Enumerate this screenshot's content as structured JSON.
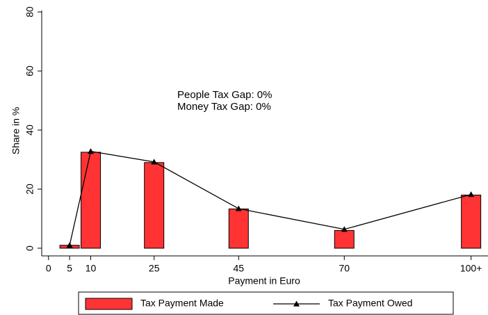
{
  "chart_data": {
    "type": "bar",
    "x": [
      5,
      10,
      25,
      45,
      70,
      100
    ],
    "series": [
      {
        "name": "Tax Payment Made",
        "type": "bar",
        "color": "#ff3333",
        "values": [
          1,
          32.5,
          29,
          13.3,
          6,
          18
        ]
      },
      {
        "name": "Tax Payment Owed",
        "type": "line",
        "color": "#000000",
        "values": [
          1,
          32.8,
          29.2,
          13.4,
          6.4,
          18.2
        ]
      }
    ],
    "xlim": [
      -1.6,
      104.5
    ],
    "xticks": [
      0,
      5,
      10,
      25,
      45,
      70,
      {
        "value": 100,
        "label": "100+"
      }
    ],
    "ylim": [
      -2.6,
      80.5
    ],
    "yticks": [
      0,
      20,
      40,
      60,
      80
    ],
    "xlabel": "Payment in Euro",
    "ylabel": "Share in %",
    "annotations": [
      "People Tax Gap: 0%",
      "Money Tax Gap: 0%"
    ],
    "grid": false,
    "legend": "bottom"
  }
}
